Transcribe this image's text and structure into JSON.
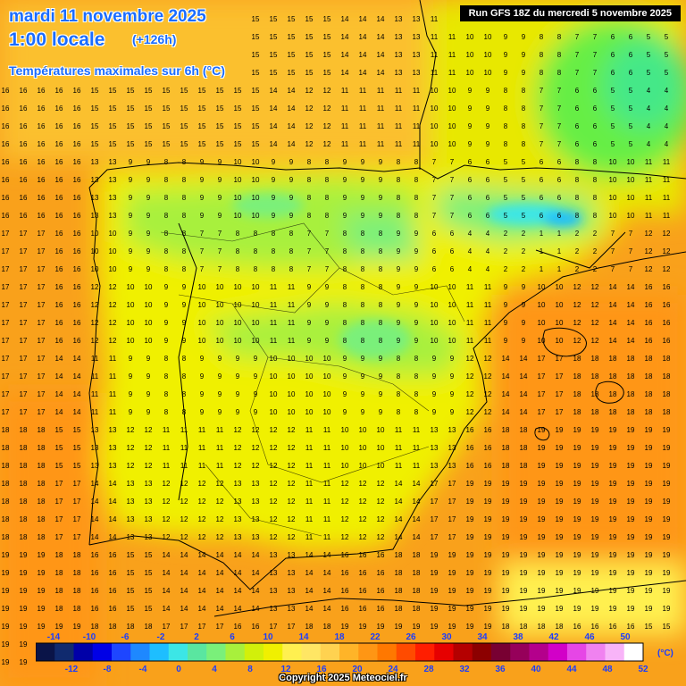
{
  "header": {
    "date": "mardi 11 novembre 2025",
    "local_time": "1:00 locale",
    "lead_time": "(+126h)",
    "product": "Températures maximales sur 6h (°C)",
    "run": "Run GFS 18Z du mercredi 5 novembre 2025"
  },
  "legend": {
    "unit": "(°C)",
    "top_labels": [
      "-14",
      "-10",
      "-6",
      "-2",
      "2",
      "6",
      "10",
      "14",
      "18",
      "22",
      "26",
      "30",
      "34",
      "38",
      "42",
      "46",
      "50"
    ],
    "bottom_labels": [
      "-12",
      "-8",
      "-4",
      "0",
      "4",
      "8",
      "12",
      "16",
      "20",
      "24",
      "28",
      "32",
      "36",
      "40",
      "44",
      "48",
      "52"
    ],
    "colors": [
      "#0a1448",
      "#102a6e",
      "#0000a8",
      "#0000e6",
      "#1e46ff",
      "#1e88ff",
      "#1ebeff",
      "#3ce6e6",
      "#5ae6a0",
      "#7af07a",
      "#a8f03c",
      "#d2f00a",
      "#f0f000",
      "#fff050",
      "#ffe664",
      "#ffd250",
      "#ffb428",
      "#ff9614",
      "#ff7800",
      "#ff4b00",
      "#ff1e00",
      "#e60000",
      "#b40000",
      "#8c0000",
      "#780032",
      "#96005a",
      "#b4008c",
      "#d200c8",
      "#e646e6",
      "#f082f0",
      "#f8b4f8",
      "#ffffff"
    ]
  },
  "copyright": "Copyright 2025 Meteociel.fr",
  "temperature_grid_sample": [
    [
      "15",
      "15",
      "15",
      "15",
      "15",
      "15",
      "15",
      "15",
      "15",
      "14",
      "13",
      "11",
      "10",
      "9",
      "8",
      "7",
      "6",
      "5"
    ],
    [
      "16",
      "16",
      "15",
      "15",
      "15",
      "15",
      "15",
      "14",
      "12",
      "11",
      "11",
      "10",
      "9",
      "8",
      "7",
      "6",
      "5",
      "4"
    ],
    [
      "16",
      "16",
      "13",
      "9",
      "8",
      "9",
      "10",
      "9",
      "8",
      "9",
      "8",
      "7",
      "6",
      "5",
      "6",
      "8",
      "10",
      "11"
    ],
    [
      "17",
      "16",
      "10",
      "9",
      "8",
      "7",
      "8",
      "8",
      "7",
      "8",
      "9",
      "6",
      "4",
      "2",
      "1",
      "2",
      "7",
      "12"
    ],
    [
      "17",
      "16",
      "12",
      "10",
      "9",
      "10",
      "10",
      "11",
      "9",
      "8",
      "9",
      "10",
      "11",
      "9",
      "10",
      "12",
      "14",
      "16"
    ],
    [
      "17",
      "14",
      "11",
      "9",
      "8",
      "9",
      "9",
      "10",
      "10",
      "9",
      "8",
      "9",
      "12",
      "14",
      "17",
      "18",
      "18",
      "18"
    ],
    [
      "18",
      "15",
      "13",
      "12",
      "11",
      "11",
      "12",
      "12",
      "11",
      "10",
      "11",
      "13",
      "16",
      "18",
      "19",
      "19",
      "19",
      "19"
    ],
    [
      "18",
      "17",
      "14",
      "13",
      "12",
      "12",
      "13",
      "12",
      "11",
      "12",
      "14",
      "17",
      "19",
      "19",
      "19",
      "19",
      "19",
      "19"
    ],
    [
      "19",
      "18",
      "16",
      "15",
      "14",
      "14",
      "14",
      "13",
      "14",
      "16",
      "18",
      "19",
      "19",
      "19",
      "19",
      "19",
      "19",
      "19"
    ],
    [
      "19",
      "19",
      "18",
      "18",
      "17",
      "17",
      "16",
      "17",
      "18",
      "19",
      "19",
      "19",
      "19",
      "18",
      "18",
      "16",
      "16",
      "15"
    ]
  ]
}
